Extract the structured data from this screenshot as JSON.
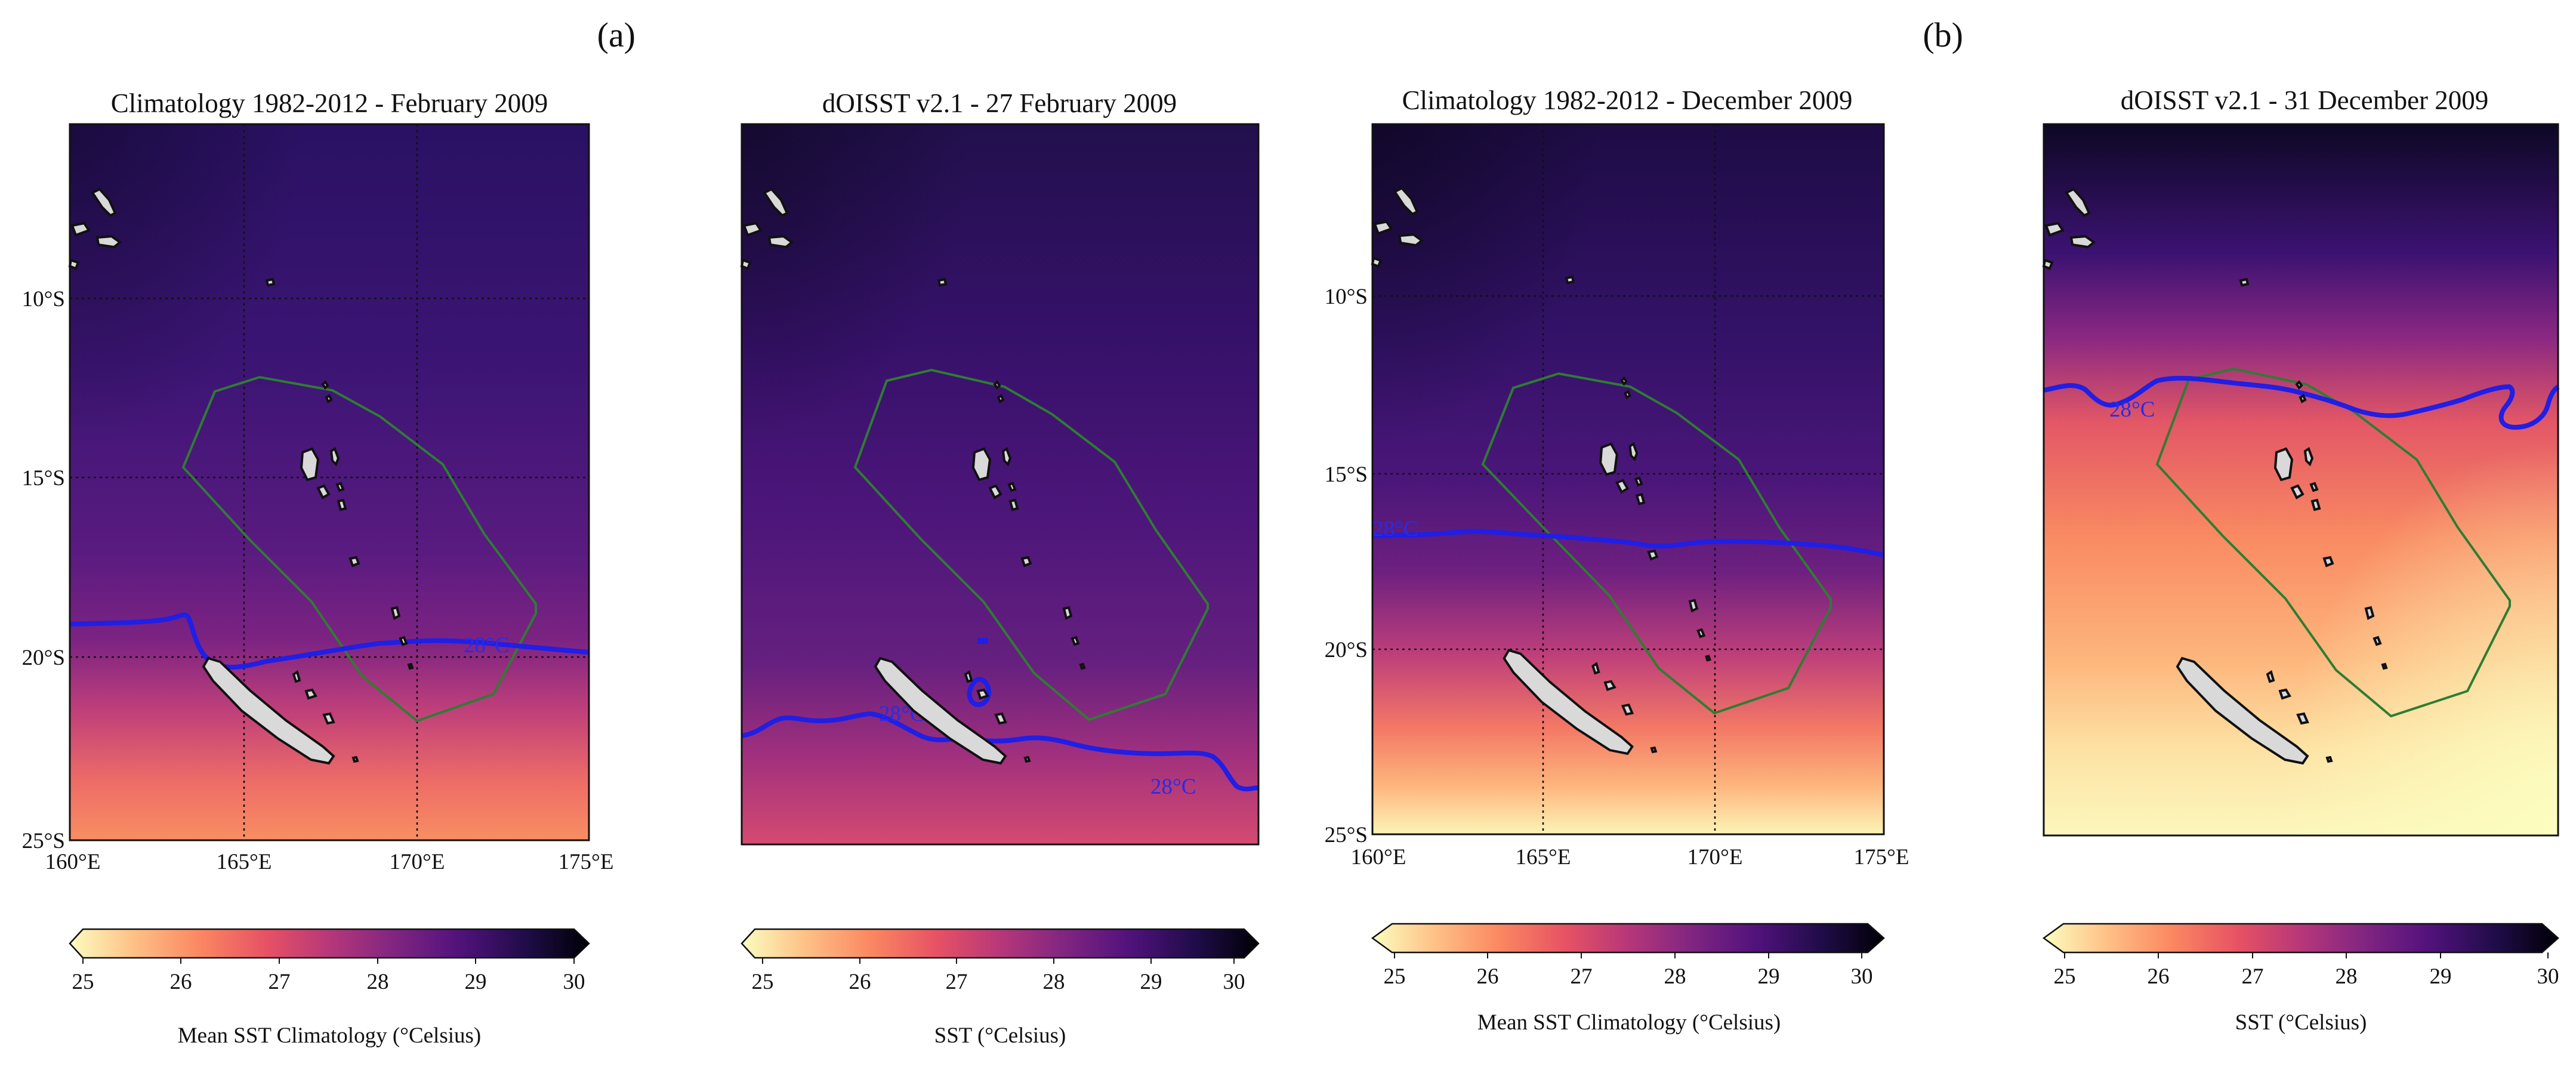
{
  "figure_labels": {
    "a": "(a)",
    "b": "(b)"
  },
  "colormap": {
    "name": "magma_r",
    "stops": [
      "#fcfdbf",
      "#fec287",
      "#fb8761",
      "#e65164",
      "#b73779",
      "#822681",
      "#51127c",
      "#1f0c48",
      "#000004"
    ]
  },
  "contour_color": "#1f1fe6",
  "region_outline_color": "#2e7d32",
  "island_fill": "#d9d9d9",
  "panels": [
    {
      "id": "p1",
      "title": "Climatology 1982-2012 - February 2009",
      "isotherm_label": "28°C",
      "colorbar_label": "Mean SST Climatology (°Celsius)",
      "colorbar_ticks": [
        "25",
        "26",
        "27",
        "28",
        "29",
        "30"
      ],
      "lat_ticks": [
        "10°S",
        "15°S",
        "20°S",
        "25°S"
      ],
      "lon_ticks": [
        "160°E",
        "165°E",
        "170°E",
        "175°E"
      ]
    },
    {
      "id": "p2",
      "title": "dOISST v2.1 - 27 February 2009",
      "isotherm_labels": [
        "28°C",
        "28°C"
      ],
      "colorbar_label": "SST (°Celsius)",
      "colorbar_ticks": [
        "25",
        "26",
        "27",
        "28",
        "29",
        "30"
      ]
    },
    {
      "id": "p3",
      "title": "Climatology 1982-2012 - December 2009",
      "isotherm_label": "28°C",
      "colorbar_label": "Mean SST Climatology (°Celsius)",
      "colorbar_ticks": [
        "25",
        "26",
        "27",
        "28",
        "29",
        "30"
      ],
      "lat_ticks": [
        "10°S",
        "15°S",
        "20°S",
        "25°S"
      ],
      "lon_ticks": [
        "160°E",
        "165°E",
        "170°E",
        "175°E"
      ]
    },
    {
      "id": "p4",
      "title": "dOISST v2.1 - 31 December 2009",
      "isotherm_label": "28°C",
      "colorbar_label": "SST (°Celsius)",
      "colorbar_ticks": [
        "25",
        "26",
        "27",
        "28",
        "29",
        "30"
      ]
    }
  ]
}
